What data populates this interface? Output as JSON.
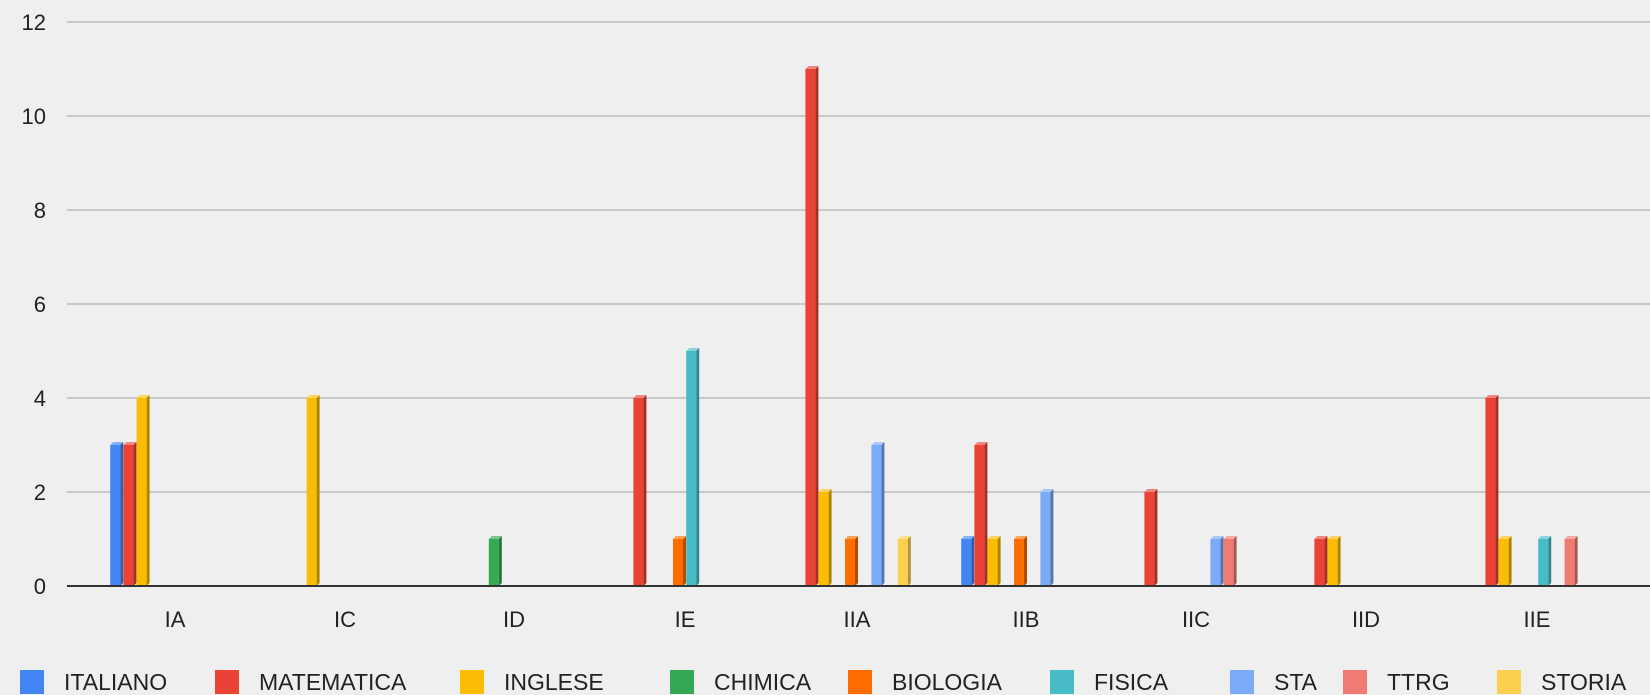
{
  "chart_data": {
    "type": "bar",
    "categories": [
      "IA",
      "IC",
      "ID",
      "IE",
      "IIA",
      "IIB",
      "IIC",
      "IID",
      "IIE"
    ],
    "series": [
      {
        "name": "ITALIANO",
        "color": "#4285f4",
        "values": [
          3,
          0,
          0,
          0,
          0,
          1,
          0,
          0,
          0
        ]
      },
      {
        "name": "MATEMATICA",
        "color": "#ea4335",
        "values": [
          3,
          0,
          0,
          4,
          11,
          3,
          2,
          1,
          4
        ]
      },
      {
        "name": "INGLESE",
        "color": "#fbbc04",
        "values": [
          4,
          4,
          0,
          0,
          2,
          1,
          0,
          1,
          1
        ]
      },
      {
        "name": "CHIMICA",
        "color": "#34a853",
        "values": [
          0,
          0,
          1,
          0,
          0,
          0,
          0,
          0,
          0
        ]
      },
      {
        "name": "BIOLOGIA",
        "color": "#ff6d01",
        "values": [
          0,
          0,
          0,
          1,
          1,
          1,
          0,
          0,
          0
        ]
      },
      {
        "name": "FISICA",
        "color": "#46bdc6",
        "values": [
          0,
          0,
          0,
          5,
          0,
          0,
          0,
          0,
          1
        ]
      },
      {
        "name": "STA",
        "color": "#7baaf7",
        "values": [
          0,
          0,
          0,
          0,
          3,
          2,
          1,
          0,
          0
        ]
      },
      {
        "name": "TTRG",
        "color": "#f07b72",
        "values": [
          0,
          0,
          0,
          0,
          0,
          0,
          1,
          0,
          1
        ]
      },
      {
        "name": "STORIA",
        "color": "#fcd04f",
        "values": [
          0,
          0,
          0,
          0,
          1,
          0,
          0,
          0,
          0
        ]
      }
    ],
    "y_ticks": [
      0,
      2,
      4,
      6,
      8,
      10,
      12
    ],
    "ylim": [
      0,
      12
    ],
    "grid": true,
    "legend_position": "bottom",
    "style": "3d-column"
  }
}
